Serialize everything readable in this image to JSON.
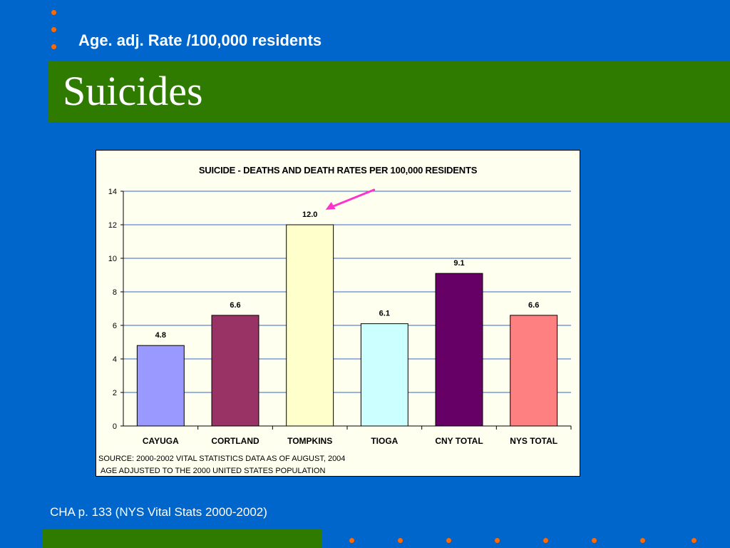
{
  "slide": {
    "subtitle": "Age. adj. Rate /100,000 residents",
    "title": "Suicides",
    "footer": "CHA p. 133 (NYS Vital Stats 2000-2002)"
  },
  "chart_data": {
    "type": "bar",
    "title": "SUICIDE - DEATHS AND DEATH RATES PER 100,000 RESIDENTS",
    "categories": [
      "CAYUGA",
      "CORTLAND",
      "TOMPKINS",
      "TIOGA",
      "CNY TOTAL",
      "NYS TOTAL"
    ],
    "values": [
      4.8,
      6.6,
      12.0,
      6.1,
      9.1,
      6.6
    ],
    "value_labels": [
      "4.8",
      "6.6",
      "12.0",
      "6.1",
      "9.1",
      "6.6"
    ],
    "bar_colors": [
      "#9999ff",
      "#993366",
      "#ffffcc",
      "#ccffff",
      "#660066",
      "#ff8080"
    ],
    "ylim": [
      0,
      14
    ],
    "yticks": [
      0,
      2,
      4,
      6,
      8,
      10,
      12,
      14
    ],
    "grid": true,
    "xlabel": "",
    "ylabel": "",
    "annotation": "arrow pointing to TOMPKINS value label",
    "source_lines": [
      "SOURCE: 2000-2002 VITAL STATISTICS DATA AS OF AUGUST, 2004",
      "AGE ADJUSTED TO THE 2000 UNITED STATES POPULATION"
    ]
  },
  "colors": {
    "background": "#0066cc",
    "title_band": "#2e7b00",
    "accent_dots": "#ff6a00",
    "gridline": "#3366cc",
    "annotation_arrow": "#ff33cc"
  }
}
